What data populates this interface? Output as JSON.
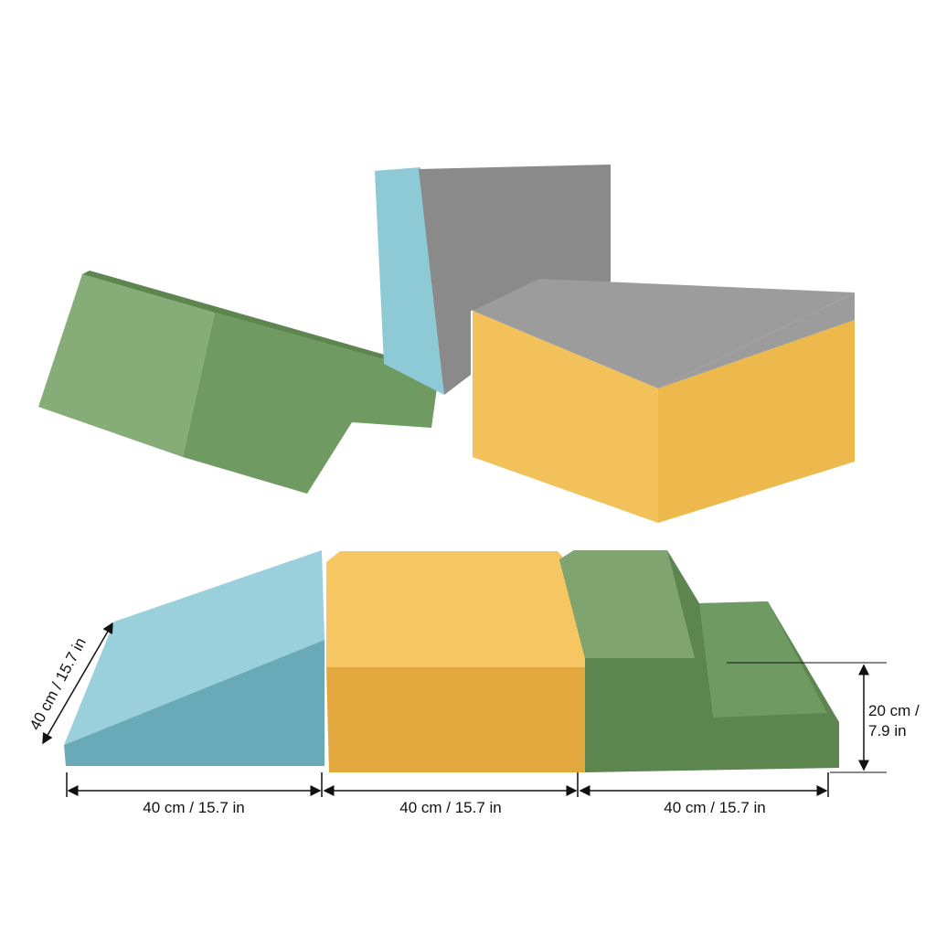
{
  "image": {
    "subject": "foam play blocks",
    "colors": {
      "teal": "#8ec9d6",
      "teal_dark": "#6aaab8",
      "grey": "#8a8a8a",
      "grey_light": "#9c9c9c",
      "yellow": "#f2c15a",
      "yellow_dark": "#e2a83d",
      "green": "#6f9a62",
      "green_light": "#86ad78",
      "green_dark": "#5c8550"
    }
  },
  "dimensions": {
    "slope_length": "40 cm / 15.7 in",
    "width_1": "40 cm / 15.7 in",
    "width_2": "40 cm / 15.7 in",
    "width_3": "40 cm / 15.7 in",
    "height_line1": "20 cm /",
    "height_line2": "7.9 in"
  }
}
